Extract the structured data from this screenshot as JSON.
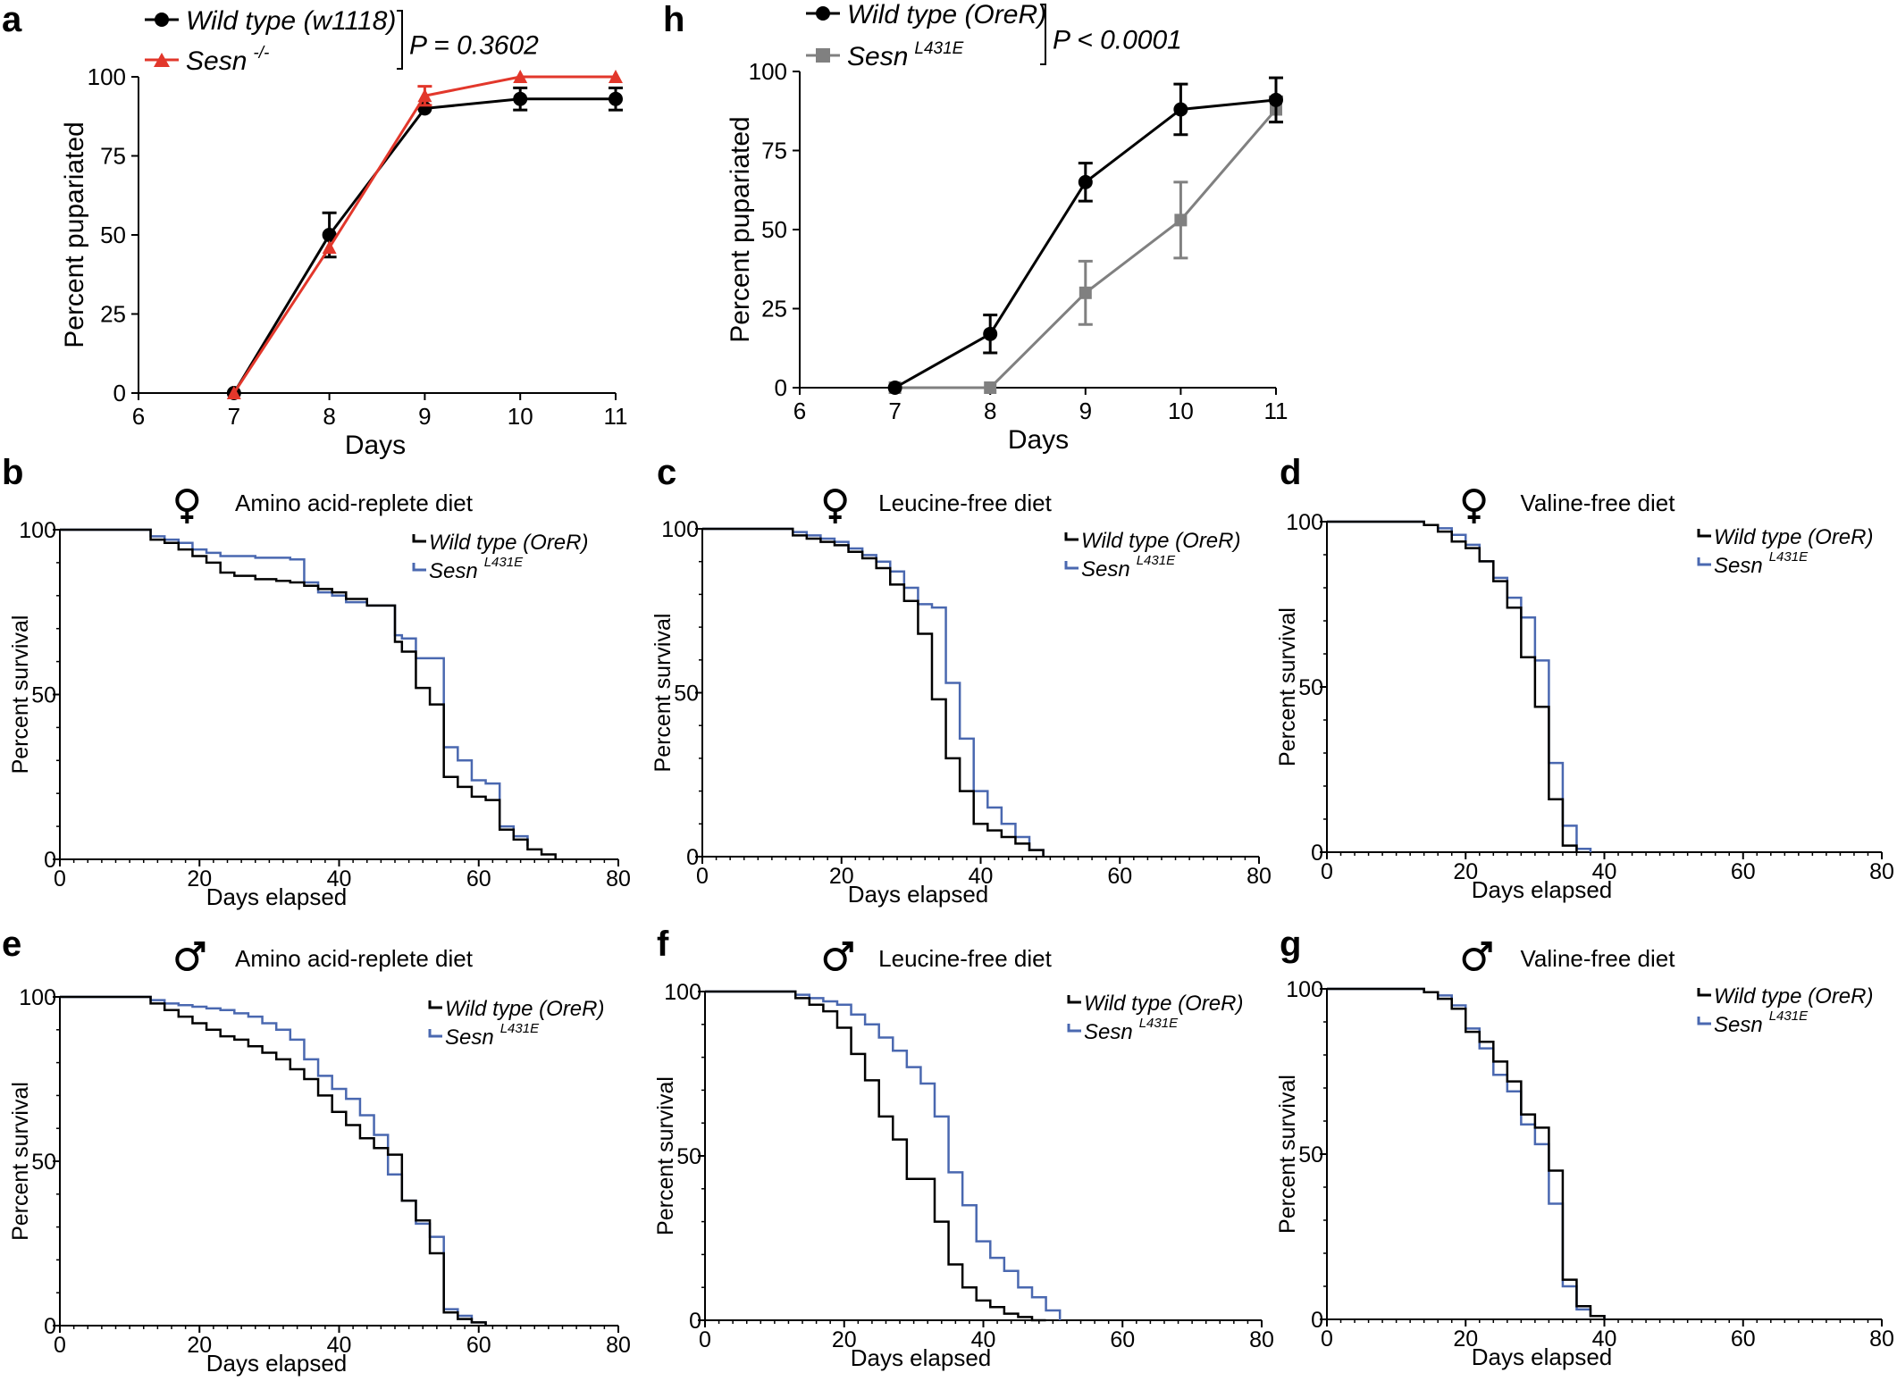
{
  "colors": {
    "black": "#000000",
    "red": "#e2372b",
    "gray": "#808080",
    "blue": "#4a68b0"
  },
  "chart_data": [
    {
      "id": "a",
      "panel_label": "a",
      "type": "line",
      "title": "",
      "xlabel": "Days",
      "ylabel": "Percent pupariated",
      "xlim": [
        6,
        11
      ],
      "ylim": [
        0,
        100
      ],
      "xticks": [
        "6",
        "7",
        "8",
        "9",
        "10",
        "11"
      ],
      "yticks": [
        "0",
        "25",
        "50",
        "75",
        "100"
      ],
      "legend_position": "top-left",
      "stat": "P = 0.3602",
      "series": [
        {
          "name": "Wild type (w1118)",
          "name_sup": "",
          "color": "#000000",
          "marker": "circle",
          "x": [
            7,
            8,
            9,
            10,
            11
          ],
          "y": [
            0,
            50,
            90,
            93,
            93
          ],
          "err": [
            0,
            7,
            0,
            3.5,
            3.5
          ]
        },
        {
          "name": "Sesn",
          "name_sup": "-/-",
          "color": "#e2372b",
          "marker": "triangle",
          "x": [
            7,
            8,
            9,
            10,
            11
          ],
          "y": [
            0,
            46,
            94,
            100,
            100
          ],
          "err": [
            0,
            0,
            3,
            0,
            0
          ]
        }
      ]
    },
    {
      "id": "h",
      "panel_label": "h",
      "type": "line",
      "title": "",
      "xlabel": "Days",
      "ylabel": "Percent pupariated",
      "xlim": [
        6,
        11
      ],
      "ylim": [
        0,
        100
      ],
      "xticks": [
        "6",
        "7",
        "8",
        "9",
        "10",
        "11"
      ],
      "yticks": [
        "0",
        "25",
        "50",
        "75",
        "100"
      ],
      "legend_position": "top-left",
      "stat": "P < 0.0001",
      "series": [
        {
          "name": "Wild type (OreR)",
          "name_sup": "",
          "color": "#000000",
          "marker": "circle",
          "x": [
            7,
            8,
            9,
            10,
            11
          ],
          "y": [
            0,
            17,
            65,
            88,
            91
          ],
          "err": [
            0,
            6,
            6,
            8,
            7
          ]
        },
        {
          "name": "Sesn",
          "name_sup": "L431E",
          "color": "#808080",
          "marker": "square",
          "x": [
            7,
            8,
            9,
            10,
            11
          ],
          "y": [
            0,
            0,
            30,
            53,
            88
          ],
          "err": [
            0,
            0,
            10,
            12,
            4
          ]
        }
      ]
    },
    {
      "id": "b",
      "panel_label": "b",
      "type": "step",
      "sex": "female",
      "title": "Amino acid-replete diet",
      "xlabel": "Days elapsed",
      "ylabel": "Percent survival",
      "xlim": [
        0,
        80
      ],
      "ylim": [
        0,
        100
      ],
      "xticks": [
        "0",
        "20",
        "40",
        "60",
        "80"
      ],
      "yticks": [
        "0",
        "50",
        "100"
      ],
      "legend_position": "top-right",
      "series": [
        {
          "name": "Wild type (OreR)",
          "name_sup": "",
          "color": "#000000",
          "x": [
            0,
            13,
            15,
            17,
            19,
            21,
            23,
            25,
            28,
            31,
            33,
            35,
            37,
            39,
            41,
            44,
            48,
            49,
            51,
            53,
            55,
            57,
            59,
            61,
            63,
            65,
            67,
            69,
            71
          ],
          "y": [
            100,
            97,
            96,
            94,
            92,
            90,
            87,
            86,
            85,
            84.5,
            84,
            83,
            82,
            81,
            79,
            77,
            66,
            63,
            52,
            47,
            25,
            22,
            19,
            18,
            9,
            6,
            3,
            1.5,
            0
          ]
        },
        {
          "name": "Sesn",
          "name_sup": "L431E",
          "color": "#4a68b0",
          "x": [
            0,
            13,
            15,
            17,
            19,
            21,
            23,
            28,
            33,
            35,
            37,
            39,
            41,
            44,
            48,
            49,
            51,
            55,
            57,
            59,
            61,
            63,
            65,
            67
          ],
          "y": [
            100,
            98,
            97,
            96,
            94,
            93,
            92,
            91.5,
            91,
            84,
            81,
            80,
            78,
            77,
            68,
            67,
            61,
            34,
            30,
            24,
            23,
            10,
            7,
            4
          ]
        }
      ]
    },
    {
      "id": "c",
      "panel_label": "c",
      "type": "step",
      "sex": "female",
      "title": "Leucine-free diet",
      "xlabel": "Days elapsed",
      "ylabel": "Percent survival",
      "xlim": [
        0,
        80
      ],
      "ylim": [
        0,
        100
      ],
      "xticks": [
        "0",
        "20",
        "40",
        "60",
        "80"
      ],
      "yticks": [
        "0",
        "50",
        "100"
      ],
      "legend_position": "top-right",
      "series": [
        {
          "name": "Wild type (OreR)",
          "name_sup": "",
          "color": "#000000",
          "x": [
            0,
            13,
            15,
            17,
            19,
            21,
            23,
            25,
            27,
            29,
            31,
            33,
            35,
            37,
            39,
            41,
            43,
            45,
            47,
            49
          ],
          "y": [
            100,
            98,
            97,
            96,
            95,
            93,
            91,
            88,
            83,
            78,
            68,
            48,
            30,
            20,
            10,
            8,
            6,
            4,
            2,
            0
          ]
        },
        {
          "name": "Sesn",
          "name_sup": "L431E",
          "color": "#4a68b0",
          "x": [
            0,
            13,
            15,
            17,
            19,
            21,
            23,
            25,
            27,
            29,
            31,
            33,
            35,
            37,
            39,
            41,
            43,
            45,
            47,
            49
          ],
          "y": [
            100,
            99,
            98,
            97,
            96,
            94,
            92,
            90,
            87,
            82,
            77,
            76,
            53,
            36,
            20,
            15,
            10,
            6,
            2,
            0
          ]
        }
      ]
    },
    {
      "id": "d",
      "panel_label": "d",
      "type": "step",
      "sex": "female",
      "title": "Valine-free diet",
      "xlabel": "Days elapsed",
      "ylabel": "Percent survival",
      "xlim": [
        0,
        80
      ],
      "ylim": [
        0,
        100
      ],
      "xticks": [
        "0",
        "20",
        "40",
        "60",
        "80"
      ],
      "yticks": [
        "0",
        "50",
        "100"
      ],
      "legend_position": "top-right",
      "series": [
        {
          "name": "Wild type (OreR)",
          "name_sup": "",
          "color": "#000000",
          "x": [
            0,
            14,
            16,
            18,
            20,
            22,
            24,
            26,
            28,
            30,
            32,
            34,
            36
          ],
          "y": [
            100,
            99,
            97,
            94,
            92,
            88,
            82,
            74,
            59,
            44,
            16,
            2,
            0
          ]
        },
        {
          "name": "Sesn",
          "name_sup": "L431E",
          "color": "#4a68b0",
          "x": [
            0,
            14,
            16,
            18,
            20,
            22,
            24,
            26,
            28,
            30,
            32,
            34,
            36,
            38
          ],
          "y": [
            100,
            99,
            98,
            96,
            93,
            88,
            83,
            77,
            71,
            58,
            27,
            8,
            1,
            0
          ]
        }
      ]
    },
    {
      "id": "e",
      "panel_label": "e",
      "type": "step",
      "sex": "male",
      "title": "Amino acid-replete diet",
      "xlabel": "Days elapsed",
      "ylabel": "Percent survival",
      "xlim": [
        0,
        80
      ],
      "ylim": [
        0,
        100
      ],
      "xticks": [
        "0",
        "20",
        "40",
        "60",
        "80"
      ],
      "yticks": [
        "0",
        "50",
        "100"
      ],
      "legend_position": "top-right",
      "series": [
        {
          "name": "Wild type (OreR)",
          "name_sup": "",
          "color": "#000000",
          "x": [
            0,
            13,
            15,
            17,
            19,
            21,
            23,
            25,
            27,
            29,
            31,
            33,
            35,
            37,
            39,
            41,
            43,
            45,
            47,
            49,
            51,
            53,
            55,
            57,
            59,
            61
          ],
          "y": [
            100,
            98,
            96,
            94,
            92,
            90,
            88,
            87,
            85,
            83,
            81,
            78,
            75,
            70,
            65,
            61,
            57,
            54,
            52,
            38,
            32,
            22,
            4,
            2,
            1,
            0
          ]
        },
        {
          "name": "Sesn",
          "name_sup": "L431E",
          "color": "#4a68b0",
          "x": [
            0,
            13,
            15,
            17,
            19,
            21,
            23,
            25,
            27,
            29,
            31,
            33,
            35,
            37,
            39,
            41,
            43,
            45,
            47,
            49,
            51,
            53,
            55,
            57,
            59,
            61
          ],
          "y": [
            100,
            99,
            98,
            97.5,
            97,
            96.5,
            96,
            95,
            94,
            92,
            90,
            87,
            81,
            76,
            72,
            69,
            64,
            58,
            46,
            38,
            31,
            27,
            5,
            3,
            1,
            0
          ]
        }
      ]
    },
    {
      "id": "f",
      "panel_label": "f",
      "type": "step",
      "sex": "male",
      "title": "Leucine-free diet",
      "xlabel": "Days elapsed",
      "ylabel": "Percent survival",
      "xlim": [
        0,
        80
      ],
      "ylim": [
        0,
        100
      ],
      "xticks": [
        "0",
        "20",
        "40",
        "60",
        "80"
      ],
      "yticks": [
        "0",
        "50",
        "100"
      ],
      "legend_position": "top-right",
      "series": [
        {
          "name": "Wild type (OreR)",
          "name_sup": "",
          "color": "#000000",
          "x": [
            0,
            13,
            15,
            17,
            19,
            21,
            23,
            25,
            27,
            29,
            31,
            33,
            35,
            37,
            39,
            41,
            43,
            45,
            47,
            49
          ],
          "y": [
            100,
            98,
            96,
            94,
            89,
            81,
            73,
            62,
            55,
            43,
            43,
            30,
            17,
            10,
            6,
            4,
            2,
            1,
            0,
            0
          ]
        },
        {
          "name": "Sesn",
          "name_sup": "L431E",
          "color": "#4a68b0",
          "x": [
            0,
            13,
            15,
            17,
            19,
            21,
            23,
            25,
            27,
            29,
            31,
            33,
            35,
            37,
            39,
            41,
            43,
            45,
            47,
            49,
            51
          ],
          "y": [
            100,
            99,
            98,
            97,
            96,
            93,
            90,
            86,
            82,
            77,
            72,
            62,
            45,
            35,
            24,
            19,
            15,
            10,
            7,
            3,
            0
          ]
        }
      ]
    },
    {
      "id": "g",
      "panel_label": "g",
      "type": "step",
      "sex": "male",
      "title": "Valine-free diet",
      "xlabel": "Days elapsed",
      "ylabel": "Percent survival",
      "xlim": [
        0,
        80
      ],
      "ylim": [
        0,
        100
      ],
      "xticks": [
        "0",
        "20",
        "40",
        "60",
        "80"
      ],
      "yticks": [
        "0",
        "50",
        "100"
      ],
      "legend_position": "top-right",
      "series": [
        {
          "name": "Wild type (OreR)",
          "name_sup": "",
          "color": "#000000",
          "x": [
            0,
            14,
            16,
            18,
            20,
            22,
            24,
            26,
            28,
            30,
            32,
            34,
            36,
            38,
            40
          ],
          "y": [
            100,
            99,
            97,
            94,
            87,
            84,
            78,
            72,
            62,
            58,
            45,
            12,
            4,
            1,
            0
          ]
        },
        {
          "name": "Sesn",
          "name_sup": "L431E",
          "color": "#4a68b0",
          "x": [
            0,
            14,
            16,
            18,
            20,
            22,
            24,
            26,
            28,
            30,
            32,
            34,
            36,
            38,
            40
          ],
          "y": [
            100,
            99,
            98,
            95,
            88,
            82,
            74,
            69,
            59,
            53,
            35,
            10,
            3,
            1,
            0
          ]
        }
      ]
    }
  ]
}
